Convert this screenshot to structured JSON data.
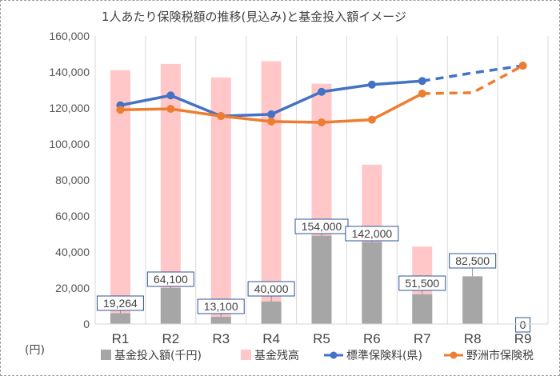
{
  "chart_data": {
    "type": "bar",
    "title": "1人あたり保険税額の推移(見込み)と基金投入額イメージ",
    "unit_label": "(円)",
    "categories": [
      "R1",
      "R2",
      "R3",
      "R4",
      "R5",
      "R6",
      "R7",
      "R8",
      "R9"
    ],
    "ylim": [
      0,
      160000
    ],
    "yticks": [
      0,
      20000,
      40000,
      60000,
      80000,
      100000,
      120000,
      140000,
      160000
    ],
    "ytick_labels": [
      "0",
      "20,000",
      "40,000",
      "60,000",
      "80,000",
      "100,000",
      "120,000",
      "140,000",
      "160,000"
    ],
    "grid": "vertical",
    "legend": "bottom",
    "series": [
      {
        "name": "基金投入額(千円)",
        "kind": "bar",
        "color": "#a6a6a6",
        "values": [
          6000,
          20000,
          4000,
          12500,
          49000,
          45500,
          16500,
          26500,
          0
        ],
        "labels": [
          "19,264",
          "64,100",
          "13,100",
          "40,000",
          "154,000",
          "142,000",
          "51,500",
          "82,500",
          "0"
        ]
      },
      {
        "name": "基金残高",
        "kind": "bar",
        "color": "#ffc7c7",
        "values": [
          141000,
          144500,
          137000,
          146000,
          133500,
          88500,
          43000,
          null,
          null
        ]
      },
      {
        "name": "標準保険料(県)",
        "kind": "line",
        "color": "#4472c4",
        "values": [
          121500,
          127000,
          115500,
          116500,
          129000,
          133000,
          135000,
          139500,
          143500
        ],
        "dashed_from_index": 6
      },
      {
        "name": "野洲市保険税",
        "kind": "line",
        "color": "#ed7d31",
        "values": [
          119000,
          119500,
          115500,
          112500,
          112000,
          113500,
          128000,
          128500,
          143500
        ],
        "dashed_from_index": 6
      }
    ]
  }
}
